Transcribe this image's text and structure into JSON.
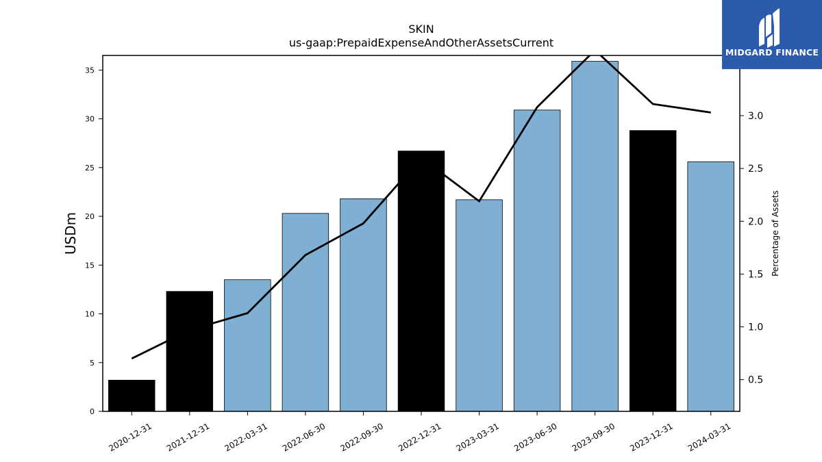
{
  "chart_data": {
    "type": "bar",
    "title": "SKIN",
    "subtitle": "us-gaap:PrepaidExpenseAndOtherAssetsCurrent",
    "ylabel": "USDm",
    "y2label": "Percentage of Assets",
    "categories": [
      "2020-12-31",
      "2021-12-31",
      "2022-03-31",
      "2022-06-30",
      "2022-09-30",
      "2022-12-31",
      "2023-03-31",
      "2023-06-30",
      "2023-09-30",
      "2023-12-31",
      "2024-03-31"
    ],
    "values": [
      3.2,
      12.3,
      13.5,
      20.3,
      21.8,
      26.7,
      21.7,
      30.9,
      35.9,
      28.8,
      25.6
    ],
    "bar_colors": [
      "#000000",
      "#000000",
      "#7fafd3",
      "#7fafd3",
      "#7fafd3",
      "#000000",
      "#7fafd3",
      "#7fafd3",
      "#7fafd3",
      "#000000",
      "#7fafd3"
    ],
    "line": {
      "axis": "right",
      "color": "#000000",
      "values": [
        0.7,
        0.97,
        1.13,
        1.68,
        1.98,
        2.6,
        2.19,
        3.08,
        3.62,
        3.11,
        3.03
      ]
    },
    "ylim": [
      0,
      36.5
    ],
    "y_ticks": [
      0,
      5,
      10,
      15,
      20,
      25,
      30,
      35
    ],
    "y2lim": [
      0.2,
      3.57
    ],
    "y2_ticks": [
      "0.5",
      "1.0",
      "1.5",
      "2.0",
      "2.5",
      "3.0"
    ],
    "grid": false,
    "legend": "none"
  },
  "logo": {
    "text": "MIDGARD FINANCE",
    "background": "#2d5bab",
    "icon": "midgard-logo-mark"
  }
}
